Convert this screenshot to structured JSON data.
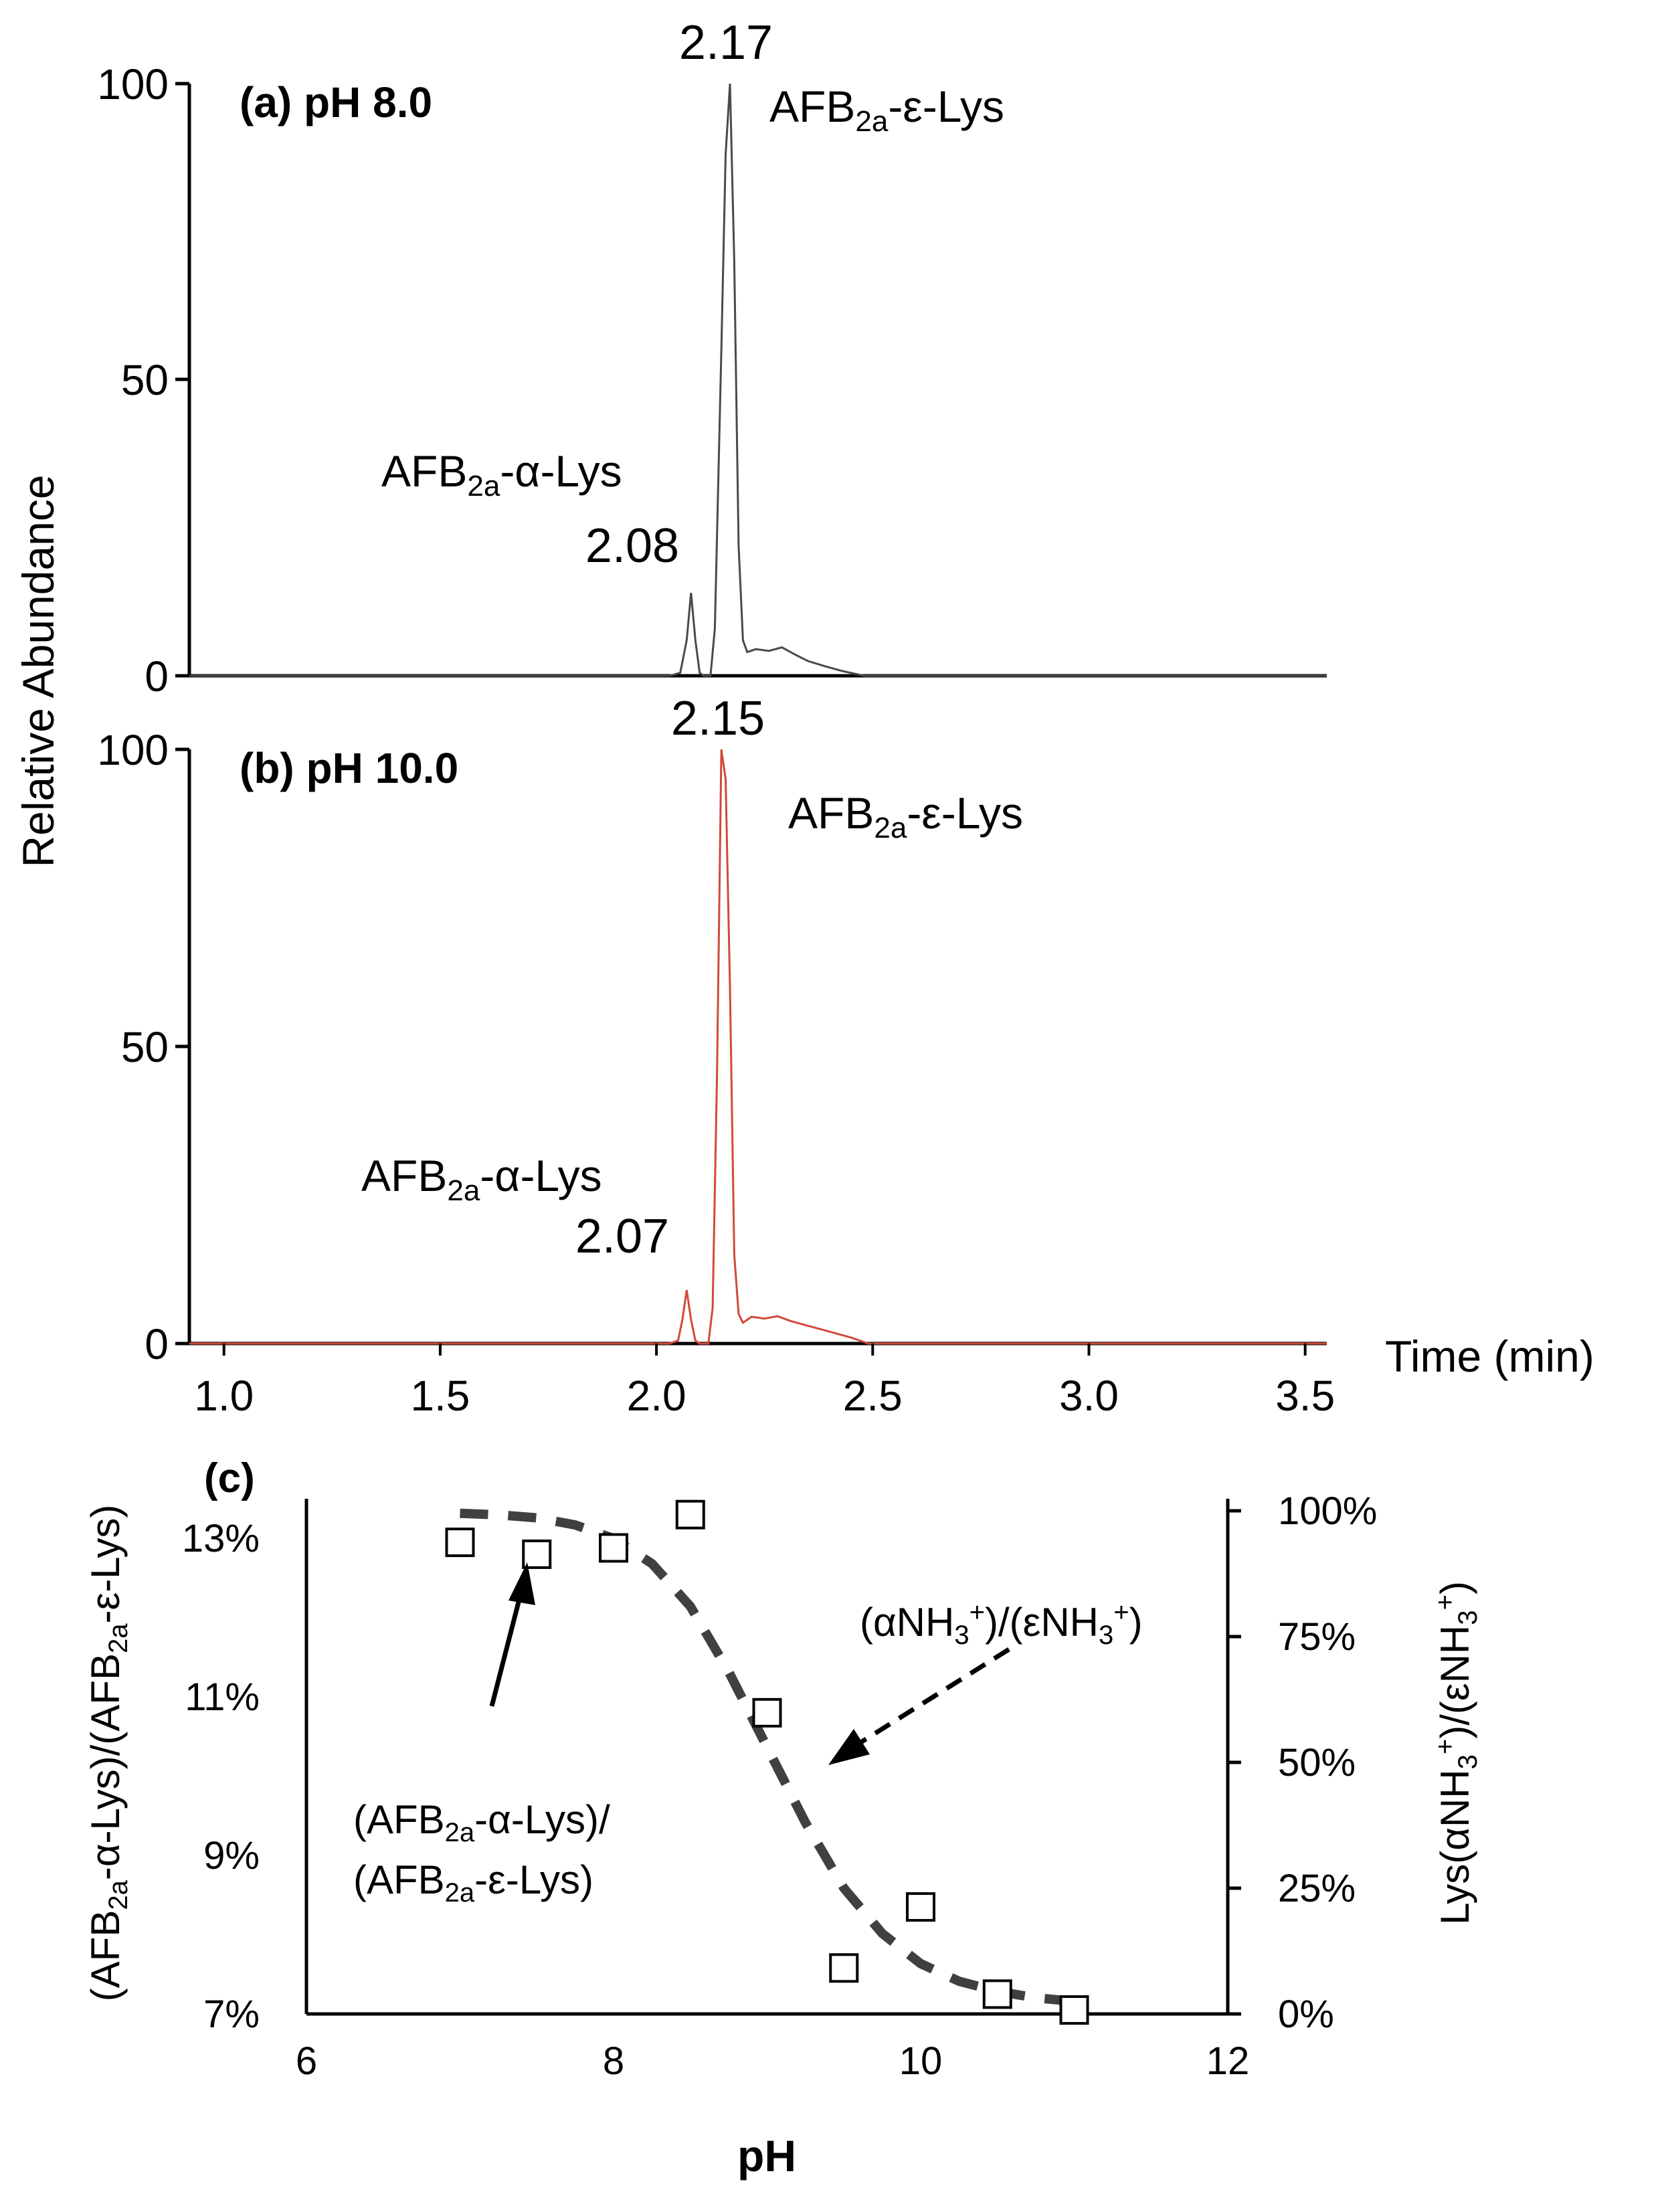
{
  "chart_data": [
    {
      "type": "line",
      "panel_label": "(a) pH 8.0",
      "ylabel": "Relative Abundance",
      "y_ticks": [
        "0",
        "50",
        "100"
      ],
      "ylim": [
        0,
        100
      ],
      "xlim": [
        0.92,
        3.55
      ],
      "line_color": "#4a4a4a",
      "series": [
        {
          "name": "pH 8.0",
          "x": [
            0.92,
            2.03,
            2.055,
            2.07,
            2.08,
            2.09,
            2.1,
            2.11,
            2.125,
            2.135,
            2.15,
            2.16,
            2.17,
            2.18,
            2.19,
            2.2,
            2.21,
            2.23,
            2.26,
            2.29,
            2.32,
            2.35,
            2.39,
            2.43,
            2.48,
            3.55
          ],
          "y": [
            0,
            0,
            0.5,
            6,
            14,
            6,
            0.5,
            0,
            0,
            8,
            55,
            88,
            100,
            70,
            22,
            6,
            4,
            4.5,
            4.2,
            4.8,
            3.6,
            2.5,
            1.6,
            0.8,
            0,
            0
          ]
        }
      ],
      "annotations": [
        {
          "text": "2.17",
          "x": 2.17
        },
        {
          "text": "2.08",
          "x": 2.08
        },
        {
          "label_main": "AFB",
          "label_sub": "2a",
          "label_rest": "-ε-Lys"
        },
        {
          "label_main": "AFB",
          "label_sub": "2a",
          "label_rest": "-α-Lys"
        }
      ]
    },
    {
      "type": "line",
      "panel_label": "(b) pH 10.0",
      "y_ticks": [
        "0",
        "50",
        "100"
      ],
      "ylim": [
        0,
        100
      ],
      "xlim": [
        0.92,
        3.55
      ],
      "x_ticks": [
        "1.0",
        "1.5",
        "2.0",
        "2.5",
        "3.0",
        "3.5"
      ],
      "x_tick_values": [
        1.0,
        1.5,
        2.0,
        2.5,
        3.0,
        3.5
      ],
      "xlabel": "Time (min)",
      "line_color": "#d04a3a",
      "series": [
        {
          "name": "pH 10.0",
          "x": [
            0.92,
            2.03,
            2.05,
            2.06,
            2.07,
            2.08,
            2.09,
            2.1,
            2.12,
            2.13,
            2.14,
            2.15,
            2.16,
            2.17,
            2.18,
            2.19,
            2.2,
            2.22,
            2.25,
            2.28,
            2.31,
            2.35,
            2.4,
            2.45,
            2.49,
            3.55
          ],
          "y": [
            0,
            0,
            0.5,
            4,
            9,
            4,
            0.5,
            0,
            0,
            6,
            45,
            100,
            95,
            60,
            15,
            5,
            3.5,
            4.5,
            4.2,
            4.6,
            3.8,
            3,
            2,
            1,
            0,
            0
          ]
        }
      ],
      "annotations": [
        {
          "text": "2.15",
          "x": 2.15
        },
        {
          "text": "2.07",
          "x": 2.07
        },
        {
          "label_main": "AFB",
          "label_sub": "2a",
          "label_rest": "-ε-Lys"
        },
        {
          "label_main": "AFB",
          "label_sub": "2a",
          "label_rest": "-α-Lys"
        }
      ]
    },
    {
      "type": "scatter",
      "panel_label": "(c)",
      "xlabel": "pH",
      "xlim": [
        6,
        12
      ],
      "x_ticks": [
        "6",
        "8",
        "10",
        "12"
      ],
      "x_tick_values": [
        6,
        8,
        10,
        12
      ],
      "ylim_left": [
        7,
        13.5
      ],
      "y_ticks_left": [
        "7%",
        "9%",
        "11%",
        "13%"
      ],
      "y_tick_values_left": [
        7,
        9,
        11,
        13
      ],
      "ylim_right": [
        0,
        100
      ],
      "y_ticks_right": [
        "0%",
        "25%",
        "50%",
        "75%",
        "100%"
      ],
      "y_tick_values_right": [
        0,
        25,
        50,
        75,
        100
      ],
      "ylabel_left": {
        "p1": "(AFB",
        "s1": "2a",
        "p2": "-α-Lys)/(AFB",
        "s2": "2a",
        "p3": "-ε-Lys)"
      },
      "ylabel_right": {
        "p1": "Lys(αNH",
        "s1": "3",
        "u1": "+",
        "p2": ")/(εNH",
        "s2": "3",
        "u2": "+",
        "p3": ")"
      },
      "series": [
        {
          "name": "(AFB2a-α-Lys)/(AFB2a-ε-Lys)",
          "marker": "open-square",
          "axis": "left",
          "x": [
            7.0,
            7.5,
            8.0,
            8.5,
            9.0,
            9.5,
            10.0,
            10.5,
            11.0
          ],
          "y": [
            12.95,
            12.8,
            12.88,
            13.3,
            10.8,
            7.58,
            8.35,
            7.25,
            7.05
          ]
        },
        {
          "name": "(αNH3+)/(εNH3+)",
          "style": "dashed",
          "axis": "right",
          "x": [
            7.0,
            7.25,
            7.5,
            7.75,
            8.0,
            8.25,
            8.5,
            8.75,
            9.0,
            9.25,
            9.5,
            9.75,
            10.0,
            10.25,
            10.5,
            10.75,
            11.0
          ],
          "y": [
            99.5,
            99.2,
            98.6,
            97.2,
            94.5,
            89.5,
            81,
            68,
            53,
            38,
            25,
            16,
            10,
            6.5,
            4.5,
            3.2,
            2.5
          ]
        }
      ],
      "annotations": [
        {
          "text": "(αNH3+)/(εNH3+)",
          "p1": "(αNH",
          "s1": "3",
          "u1": "+",
          "p2": ")/(εNH",
          "s2": "3",
          "u2": "+",
          "p3": ")"
        },
        {
          "text": "(AFB2a-α-Lys)/(AFB2a-ε-Lys)",
          "line1_main": "(AFB",
          "line1_sub": "2a",
          "line1_rest": "-α-Lys)/",
          "line2_main": "(AFB",
          "line2_sub": "2a",
          "line2_rest": "-ε-Lys)"
        }
      ]
    }
  ]
}
